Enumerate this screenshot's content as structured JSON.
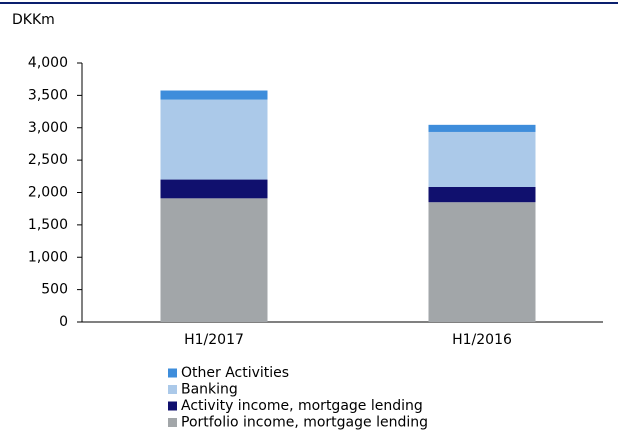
{
  "chart_data": {
    "type": "stacked_bar",
    "ylabel": "DKKm",
    "categories": [
      "H1/2017",
      "H1/2016"
    ],
    "series": [
      {
        "name": "Portfolio income, mortgage lending",
        "color": "#a2a6a9",
        "values": [
          1910,
          1850
        ]
      },
      {
        "name": "Activity income, mortgage lending",
        "color": "#10106e",
        "values": [
          290,
          235
        ]
      },
      {
        "name": "Banking",
        "color": "#abc9e9",
        "values": [
          1235,
          850
        ]
      },
      {
        "name": "Other Activities",
        "color": "#3e8ddb",
        "values": [
          140,
          110
        ]
      }
    ],
    "ylim": [
      0,
      4000
    ],
    "yticks": [
      0,
      500,
      {
        "value": 1000,
        "label": "1,000"
      },
      {
        "value": 1500,
        "label": "1,500"
      },
      {
        "value": 2000,
        "label": "2,000"
      },
      {
        "value": 2500,
        "label": "2,500"
      },
      {
        "value": 3000,
        "label": "3,000"
      },
      {
        "value": 3500,
        "label": "3,500"
      },
      {
        "value": 4000,
        "label": "4,000"
      }
    ]
  }
}
